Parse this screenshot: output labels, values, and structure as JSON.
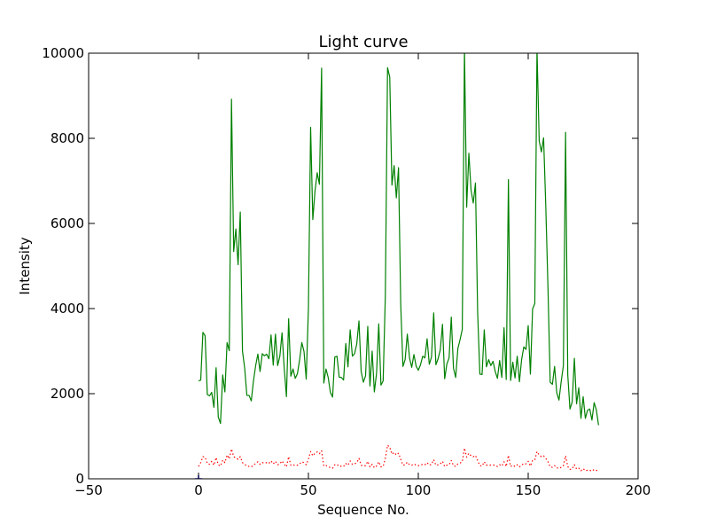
{
  "chart_data": {
    "type": "line",
    "title": "Light curve",
    "xlabel": "Sequence No.",
    "ylabel": "Intensity",
    "xlim": [
      -50,
      200
    ],
    "ylim": [
      0,
      10000
    ],
    "xticks": [
      -50,
      0,
      50,
      100,
      150,
      200
    ],
    "yticks": [
      0,
      2000,
      4000,
      6000,
      8000,
      10000
    ],
    "grid": false,
    "legend": "none",
    "series": [
      {
        "style": "solid",
        "color": "#008000",
        "x_start": 0,
        "values": [
          2300,
          2320,
          3440,
          3360,
          1980,
          1950,
          2030,
          1680,
          2610,
          1450,
          1300,
          2440,
          2040,
          3200,
          3010,
          8920,
          5340,
          5870,
          5030,
          6270,
          3000,
          2600,
          1960,
          1960,
          1830,
          2300,
          2660,
          2930,
          2520,
          2940,
          2890,
          2930,
          2820,
          3380,
          2670,
          3400,
          2660,
          2880,
          3430,
          2590,
          1930,
          3760,
          2410,
          2580,
          2360,
          2470,
          2800,
          3200,
          2990,
          2340,
          4000,
          8260,
          6090,
          6760,
          7190,
          6920,
          9650,
          2250,
          2580,
          2380,
          2030,
          1920,
          2860,
          2880,
          2390,
          2380,
          2320,
          3180,
          2630,
          3500,
          2880,
          2940,
          3170,
          3710,
          2520,
          2270,
          2420,
          3580,
          2180,
          3000,
          2040,
          2480,
          3640,
          2200,
          2300,
          4300,
          9660,
          9440,
          6900,
          7360,
          6600,
          7310,
          4100,
          2640,
          2800,
          3400,
          2840,
          2620,
          2920,
          2650,
          2550,
          2680,
          2880,
          2840,
          3290,
          2690,
          2860,
          3900,
          2680,
          2820,
          3030,
          3630,
          2350,
          2700,
          2840,
          3800,
          2600,
          2380,
          3060,
          3270,
          3510,
          10100,
          6380,
          7650,
          6780,
          6480,
          6950,
          3900,
          2460,
          2450,
          3500,
          2630,
          2800,
          2660,
          2760,
          2520,
          2360,
          2780,
          2380,
          3550,
          2330,
          7030,
          2310,
          2740,
          2370,
          2880,
          2280,
          2800,
          3100,
          3040,
          3600,
          2460,
          3990,
          4120,
          10100,
          7940,
          7680,
          8010,
          6400,
          4480,
          2270,
          2220,
          2640,
          2020,
          1850,
          2280,
          2660,
          8140,
          2440,
          1640,
          1800,
          2830,
          1760,
          2140,
          1420,
          1930,
          1420,
          1610,
          1640,
          1380,
          1790,
          1620,
          1260
        ]
      },
      {
        "style": "dotted",
        "color": "#ff0000",
        "x_start": 0,
        "values": [
          290,
          380,
          520,
          510,
          360,
          340,
          410,
          320,
          500,
          330,
          300,
          440,
          380,
          560,
          470,
          700,
          520,
          490,
          460,
          520,
          380,
          340,
          300,
          290,
          280,
          320,
          360,
          400,
          340,
          380,
          370,
          380,
          360,
          420,
          350,
          410,
          330,
          350,
          420,
          340,
          280,
          520,
          320,
          330,
          310,
          320,
          350,
          400,
          380,
          330,
          460,
          640,
          540,
          600,
          630,
          590,
          660,
          300,
          310,
          290,
          260,
          250,
          330,
          340,
          290,
          300,
          290,
          360,
          320,
          420,
          340,
          350,
          380,
          480,
          320,
          300,
          310,
          410,
          280,
          340,
          260,
          300,
          400,
          280,
          290,
          480,
          790,
          740,
          580,
          620,
          560,
          600,
          460,
          320,
          330,
          390,
          330,
          320,
          350,
          320,
          310,
          320,
          340,
          330,
          380,
          320,
          340,
          450,
          320,
          330,
          350,
          410,
          290,
          320,
          330,
          430,
          310,
          290,
          350,
          370,
          400,
          720,
          510,
          600,
          540,
          520,
          550,
          430,
          310,
          300,
          400,
          320,
          330,
          320,
          330,
          310,
          290,
          330,
          300,
          400,
          290,
          550,
          290,
          320,
          290,
          330,
          280,
          320,
          360,
          350,
          410,
          300,
          430,
          440,
          640,
          560,
          520,
          540,
          480,
          400,
          280,
          270,
          310,
          260,
          240,
          270,
          310,
          540,
          290,
          220,
          230,
          330,
          230,
          250,
          190,
          240,
          190,
          200,
          200,
          180,
          220,
          200,
          170
        ]
      }
    ],
    "marker": {
      "x": 0,
      "y": 0,
      "color": "#0000ff"
    }
  }
}
